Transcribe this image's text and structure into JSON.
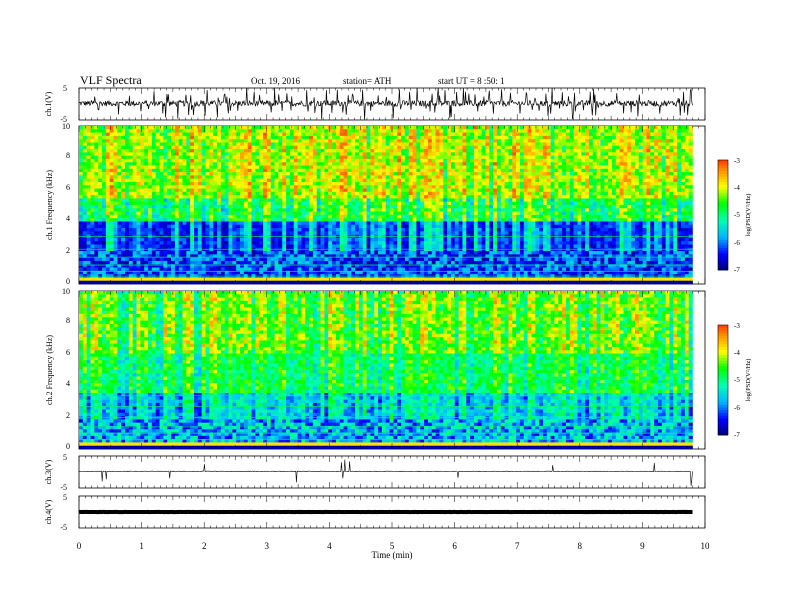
{
  "header": {
    "title": "VLF Spectra",
    "date": "Oct. 19, 2016",
    "station": "station= ATH",
    "start": "start UT = 8 :50: 1"
  },
  "chart_data": [
    {
      "type": "line",
      "name": "ch1-waveform",
      "ylabel": "ch.1(V)",
      "ylim": [
        -5,
        5
      ],
      "ticks": [
        "5",
        "-5"
      ],
      "baseline": 0.2,
      "xlim": [
        0,
        10
      ],
      "data_extent": [
        0,
        9.8
      ]
    },
    {
      "type": "heatmap",
      "name": "ch1-spectrogram",
      "ylabel": "ch.1 Frequency (kHz)",
      "ylim": [
        0,
        10
      ],
      "ticks": [
        "0",
        "2",
        "4",
        "6",
        "8",
        "10"
      ],
      "xlim": [
        0,
        10
      ],
      "data_extent": [
        0,
        9.8
      ],
      "colorbar": {
        "label": "log(PSD(V²/Hz)",
        "range": [
          -7,
          -3
        ],
        "ticks": [
          "-3",
          "-4",
          "-5",
          "-6",
          "-7"
        ]
      }
    },
    {
      "type": "heatmap",
      "name": "ch2-spectrogram",
      "ylabel": "ch.2 Frequency (kHz)",
      "ylim": [
        0,
        10
      ],
      "ticks": [
        "0",
        "2",
        "4",
        "6",
        "8",
        "10"
      ],
      "xlim": [
        0,
        10
      ],
      "data_extent": [
        0,
        9.8
      ],
      "colorbar": {
        "label": "log(PSD(V²/Hz)",
        "range": [
          -7,
          -3
        ],
        "ticks": [
          "-3",
          "-4",
          "-5",
          "-6",
          "-7"
        ]
      }
    },
    {
      "type": "line",
      "name": "ch3-waveform",
      "ylabel": "ch.3(V)",
      "ylim": [
        -5,
        5
      ],
      "ticks": [
        "5",
        "-5"
      ],
      "baseline": 0.2,
      "xlim": [
        0,
        10
      ],
      "data_extent": [
        0,
        9.8
      ]
    },
    {
      "type": "line",
      "name": "ch4-waveform",
      "ylabel": "ch.4(V)",
      "ylim": [
        -5,
        5
      ],
      "ticks": [
        "5",
        "-5"
      ],
      "baseline": 0.0,
      "xlim": [
        0,
        10
      ],
      "data_extent": [
        0,
        9.8
      ],
      "xlabel": "Time (min)",
      "xticks": [
        "0",
        "1",
        "2",
        "3",
        "4",
        "5",
        "6",
        "7",
        "8",
        "9",
        "10"
      ]
    }
  ],
  "colors": {
    "scale": [
      "#00006e",
      "#0000ff",
      "#00b4ff",
      "#00ffb4",
      "#00ff00",
      "#ffff00",
      "#ff8c00",
      "#ff0000",
      "#ffffff"
    ],
    "frame": "#000000"
  }
}
